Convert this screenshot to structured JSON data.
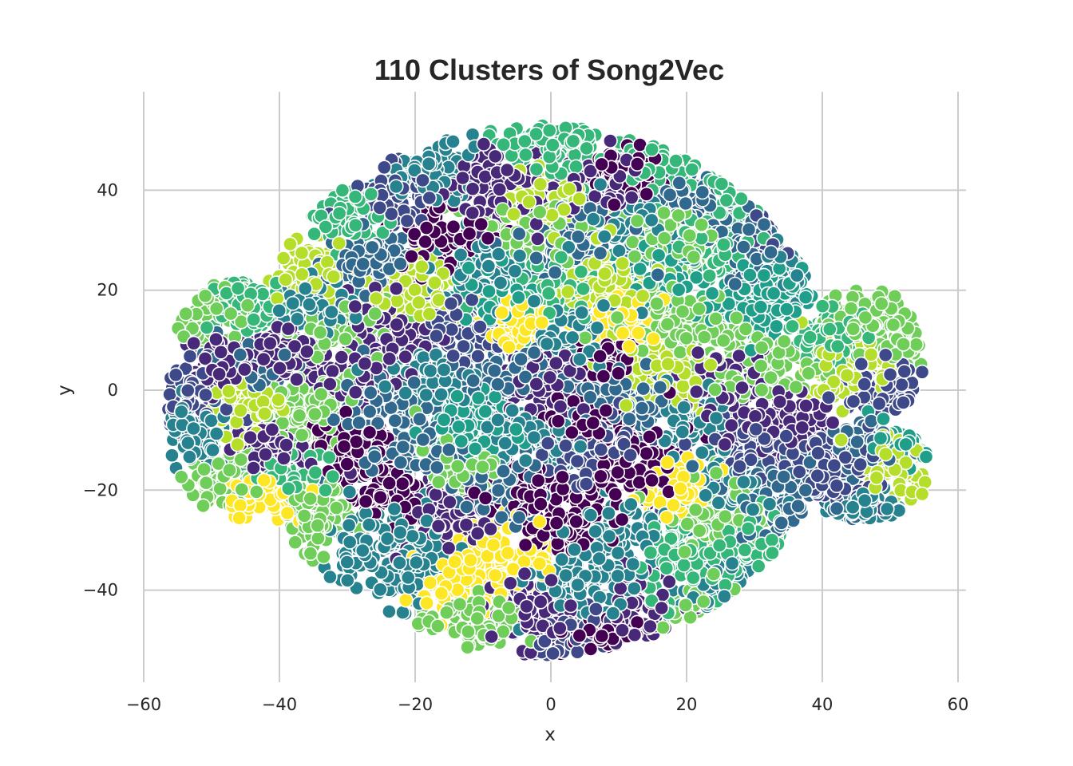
{
  "chart_data": {
    "type": "scatter",
    "title": "110 Clusters of Song2Vec",
    "xlabel": "x",
    "ylabel": "y",
    "xlim": [
      -60,
      60
    ],
    "ylim": [
      -58,
      60
    ],
    "xticks": [
      -60,
      -40,
      -20,
      0,
      20,
      40,
      60
    ],
    "yticks": [
      -40,
      -20,
      0,
      20,
      40
    ],
    "xtick_labels": [
      "−60",
      "−40",
      "−20",
      "0",
      "20",
      "40",
      "60"
    ],
    "ytick_labels": [
      "−40",
      "−20",
      "0",
      "20",
      "40"
    ],
    "grid": true,
    "legend": "none",
    "colormap": "viridis",
    "n_clusters": 110,
    "palette": [
      "#440154",
      "#482878",
      "#3e4989",
      "#31688e",
      "#26828e",
      "#1f9e89",
      "#35b779",
      "#6ece58",
      "#b5de2b",
      "#fde725"
    ],
    "clusters": [
      {
        "x": -50,
        "y": 16,
        "spread": 3,
        "color": "#6ece58"
      },
      {
        "x": -45,
        "y": 17,
        "spread": 3,
        "color": "#35b779"
      },
      {
        "x": -53,
        "y": 0,
        "spread": 3,
        "color": "#3e4989"
      },
      {
        "x": -48,
        "y": 5,
        "spread": 3,
        "color": "#482878"
      },
      {
        "x": -45,
        "y": -3,
        "spread": 3,
        "color": "#b5de2b"
      },
      {
        "x": -53,
        "y": -10,
        "spread": 3,
        "color": "#26828e"
      },
      {
        "x": -48,
        "y": -18,
        "spread": 3,
        "color": "#6ece58"
      },
      {
        "x": -43,
        "y": -22,
        "spread": 2.5,
        "color": "#fde725"
      },
      {
        "x": -41,
        "y": -12,
        "spread": 3,
        "color": "#482878"
      },
      {
        "x": -40,
        "y": 7,
        "spread": 3,
        "color": "#482878"
      },
      {
        "x": -36,
        "y": 24,
        "spread": 3,
        "color": "#b5de2b"
      },
      {
        "x": -36,
        "y": -5,
        "spread": 3,
        "color": "#6ece58"
      },
      {
        "x": -35,
        "y": -25,
        "spread": 3,
        "color": "#6ece58"
      },
      {
        "x": -31,
        "y": 10,
        "spread": 4,
        "color": "#6ece58"
      },
      {
        "x": -30,
        "y": 35,
        "spread": 3,
        "color": "#35b779"
      },
      {
        "x": -29,
        "y": -11,
        "spread": 3,
        "color": "#440154"
      },
      {
        "x": -27,
        "y": 26,
        "spread": 3,
        "color": "#31688e"
      },
      {
        "x": -26,
        "y": -3,
        "spread": 4,
        "color": "#31688e"
      },
      {
        "x": -25,
        "y": -30,
        "spread": 4,
        "color": "#26828e"
      },
      {
        "x": -24,
        "y": 10,
        "spread": 4,
        "color": "#482878"
      },
      {
        "x": -22,
        "y": 40,
        "spread": 4,
        "color": "#3e4989"
      },
      {
        "x": -21,
        "y": -35,
        "spread": 3,
        "color": "#26828e"
      },
      {
        "x": -20,
        "y": 20,
        "spread": 4,
        "color": "#b5de2b"
      },
      {
        "x": -20,
        "y": -12,
        "spread": 4,
        "color": "#31688e"
      },
      {
        "x": -18,
        "y": 2,
        "spread": 4,
        "color": "#26828e"
      },
      {
        "x": -16,
        "y": -25,
        "spread": 4,
        "color": "#482878"
      },
      {
        "x": -15,
        "y": 31,
        "spread": 4,
        "color": "#440154"
      },
      {
        "x": -14,
        "y": 12,
        "spread": 4,
        "color": "#3e4989"
      },
      {
        "x": -13,
        "y": -38,
        "spread": 3,
        "color": "#fde725"
      },
      {
        "x": -12,
        "y": -8,
        "spread": 4,
        "color": "#1f9e89"
      },
      {
        "x": -10,
        "y": 24,
        "spread": 4,
        "color": "#26828e"
      },
      {
        "x": -9,
        "y": 40,
        "spread": 4,
        "color": "#482878"
      },
      {
        "x": -8,
        "y": -20,
        "spread": 4,
        "color": "#31688e"
      },
      {
        "x": -7,
        "y": 4,
        "spread": 4,
        "color": "#31688e"
      },
      {
        "x": -6,
        "y": -33,
        "spread": 4,
        "color": "#fde725"
      },
      {
        "x": -5,
        "y": 14,
        "spread": 3,
        "color": "#fde725"
      },
      {
        "x": -4,
        "y": 33,
        "spread": 4,
        "color": "#6ece58"
      },
      {
        "x": -3,
        "y": -45,
        "spread": 4,
        "color": "#482878"
      },
      {
        "x": -2,
        "y": -10,
        "spread": 4,
        "color": "#26828e"
      },
      {
        "x": -1,
        "y": 20,
        "spread": 4,
        "color": "#35b779"
      },
      {
        "x": 0,
        "y": 0,
        "spread": 4,
        "color": "#482878"
      },
      {
        "x": 1,
        "y": 48,
        "spread": 4,
        "color": "#35b779"
      },
      {
        "x": 2,
        "y": -25,
        "spread": 4,
        "color": "#440154"
      },
      {
        "x": 3,
        "y": 30,
        "spread": 4,
        "color": "#31688e"
      },
      {
        "x": 4,
        "y": 10,
        "spread": 4,
        "color": "#26828e"
      },
      {
        "x": 5,
        "y": -40,
        "spread": 4,
        "color": "#26828e"
      },
      {
        "x": 6,
        "y": -12,
        "spread": 4,
        "color": "#3e4989"
      },
      {
        "x": 7,
        "y": 41,
        "spread": 4,
        "color": "#482878"
      },
      {
        "x": 8,
        "y": 21,
        "spread": 4,
        "color": "#b5de2b"
      },
      {
        "x": 9,
        "y": -2,
        "spread": 4,
        "color": "#31688e"
      },
      {
        "x": 10,
        "y": -30,
        "spread": 4,
        "color": "#26828e"
      },
      {
        "x": 11,
        "y": 33,
        "spread": 4,
        "color": "#26828e"
      },
      {
        "x": 12,
        "y": 14,
        "spread": 3,
        "color": "#fde725"
      },
      {
        "x": 13,
        "y": -15,
        "spread": 4,
        "color": "#440154"
      },
      {
        "x": 14,
        "y": -44,
        "spread": 4,
        "color": "#482878"
      },
      {
        "x": 15,
        "y": 45,
        "spread": 3,
        "color": "#35b779"
      },
      {
        "x": 16,
        "y": 4,
        "spread": 4,
        "color": "#b5de2b"
      },
      {
        "x": 17,
        "y": 25,
        "spread": 4,
        "color": "#1f9e89"
      },
      {
        "x": 18,
        "y": -20,
        "spread": 3,
        "color": "#fde725"
      },
      {
        "x": 19,
        "y": -35,
        "spread": 4,
        "color": "#35b779"
      },
      {
        "x": 20,
        "y": 38,
        "spread": 4,
        "color": "#31688e"
      },
      {
        "x": 21,
        "y": -6,
        "spread": 4,
        "color": "#26828e"
      },
      {
        "x": 22,
        "y": 12,
        "spread": 4,
        "color": "#6ece58"
      },
      {
        "x": 23,
        "y": -45,
        "spread": 3,
        "color": "#6ece58"
      },
      {
        "x": 24,
        "y": 28,
        "spread": 4,
        "color": "#35b779"
      },
      {
        "x": 25,
        "y": -25,
        "spread": 4,
        "color": "#6ece58"
      },
      {
        "x": 26,
        "y": 0,
        "spread": 4,
        "color": "#482878"
      },
      {
        "x": 27,
        "y": 40,
        "spread": 3,
        "color": "#35b779"
      },
      {
        "x": 28,
        "y": 16,
        "spread": 4,
        "color": "#1f9e89"
      },
      {
        "x": 29,
        "y": -12,
        "spread": 4,
        "color": "#3e4989"
      },
      {
        "x": 30,
        "y": -32,
        "spread": 4,
        "color": "#35b779"
      },
      {
        "x": 31,
        "y": 28,
        "spread": 4,
        "color": "#31688e"
      },
      {
        "x": 32,
        "y": 5,
        "spread": 4,
        "color": "#6ece58"
      },
      {
        "x": 33,
        "y": -20,
        "spread": 4,
        "color": "#31688e"
      },
      {
        "x": 34,
        "y": 20,
        "spread": 3,
        "color": "#1f9e89"
      },
      {
        "x": 35,
        "y": -8,
        "spread": 3,
        "color": "#482878"
      },
      {
        "x": 36,
        "y": 26,
        "spread": 3,
        "color": "#26828e"
      },
      {
        "x": 37,
        "y": -25,
        "spread": 3,
        "color": "#31688e"
      },
      {
        "x": 38,
        "y": -14,
        "spread": 3,
        "color": "#3e4989"
      },
      {
        "x": 42,
        "y": 10,
        "spread": 3,
        "color": "#35b779"
      },
      {
        "x": 44,
        "y": 4,
        "spread": 3,
        "color": "#b5de2b"
      },
      {
        "x": 46,
        "y": 15,
        "spread": 3,
        "color": "#6ece58"
      },
      {
        "x": 48,
        "y": 0,
        "spread": 3,
        "color": "#3e4989"
      },
      {
        "x": 50,
        "y": 12,
        "spread": 3,
        "color": "#6ece58"
      },
      {
        "x": 42,
        "y": -17,
        "spread": 3,
        "color": "#3e4989"
      },
      {
        "x": 46,
        "y": -12,
        "spread": 3,
        "color": "#31688e"
      },
      {
        "x": 50,
        "y": -14,
        "spread": 3,
        "color": "#b5de2b"
      },
      {
        "x": 52,
        "y": -10,
        "spread": 2.5,
        "color": "#1f9e89"
      },
      {
        "x": 44,
        "y": -25,
        "spread": 2.5,
        "color": "#26828e"
      },
      {
        "x": -38,
        "y": -16,
        "spread": 3,
        "color": "#35b779"
      },
      {
        "x": -33,
        "y": 18,
        "spread": 3,
        "color": "#26828e"
      },
      {
        "x": -18,
        "y": 43,
        "spread": 3,
        "color": "#26828e"
      },
      {
        "x": -10,
        "y": -45,
        "spread": 3,
        "color": "#6ece58"
      },
      {
        "x": 3,
        "y": -50,
        "spread": 3,
        "color": "#3e4989"
      },
      {
        "x": 8,
        "y": -50,
        "spread": 3,
        "color": "#440154"
      },
      {
        "x": 12,
        "y": 43,
        "spread": 3,
        "color": "#440154"
      },
      {
        "x": 25,
        "y": -40,
        "spread": 3,
        "color": "#26828e"
      },
      {
        "x": -4,
        "y": -20,
        "spread": 3,
        "color": "#440154"
      },
      {
        "x": 15,
        "y": 15,
        "spread": 3,
        "color": "#6ece58"
      },
      {
        "x": -24,
        "y": -20,
        "spread": 3,
        "color": "#440154"
      },
      {
        "x": 9,
        "y": 6,
        "spread": 3,
        "color": "#440154"
      },
      {
        "x": 33,
        "y": 33,
        "spread": 3,
        "color": "#3e4989"
      },
      {
        "x": -45,
        "y": 5,
        "spread": 3,
        "color": "#31688e"
      },
      {
        "x": 18,
        "y": 30,
        "spread": 3,
        "color": "#6ece58"
      },
      {
        "x": -14,
        "y": -15,
        "spread": 3,
        "color": "#6ece58"
      },
      {
        "x": 0,
        "y": 38,
        "spread": 3,
        "color": "#b5de2b"
      },
      {
        "x": -28,
        "y": 3,
        "spread": 3,
        "color": "#482878"
      },
      {
        "x": 28,
        "y": -20,
        "spread": 3,
        "color": "#26828e"
      },
      {
        "x": 5,
        "y": -5,
        "spread": 3,
        "color": "#440154"
      },
      {
        "x": -8,
        "y": 20,
        "spread": 3,
        "color": "#1f9e89"
      }
    ]
  }
}
